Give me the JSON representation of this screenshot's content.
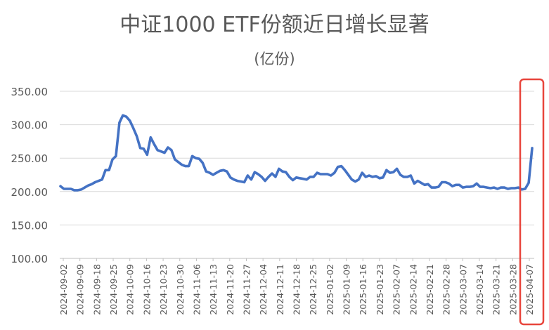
{
  "chart_data": {
    "type": "line",
    "title": "中证1000 ETF份额近日增长显著",
    "subtitle": "(亿份)",
    "xlabel": "",
    "ylabel": "",
    "ylim": [
      100,
      350
    ],
    "yticks": [
      "100.00",
      "150.00",
      "200.00",
      "250.00",
      "300.00",
      "350.00"
    ],
    "xtick_labels": [
      "2024-09-02",
      "2024-09-09",
      "2024-09-18",
      "2024-09-25",
      "2024-10-09",
      "2024-10-16",
      "2024-10-23",
      "2024-10-30",
      "2024-11-06",
      "2024-11-13",
      "2024-11-20",
      "2024-11-27",
      "2024-12-04",
      "2024-12-11",
      "2024-12-18",
      "2024-12-25",
      "2025-01-02",
      "2025-01-09",
      "2025-01-16",
      "2025-01-23",
      "2025-02-07",
      "2025-02-14",
      "2025-02-21",
      "2025-02-28",
      "2025-03-07",
      "2025-03-14",
      "2025-03-21",
      "2025-03-28",
      "2025-04-07"
    ],
    "grid": "horizontal",
    "line_color": "#4472C4",
    "highlight_box_color": "#E8453C",
    "series": [
      {
        "values": [
          208,
          204,
          204,
          204,
          202,
          202,
          203,
          206,
          209,
          211,
          214,
          216,
          218,
          232,
          232,
          248,
          253,
          303,
          314,
          312,
          306,
          295,
          283,
          265,
          264,
          255,
          281,
          271,
          262,
          260,
          258,
          266,
          262,
          248,
          244,
          240,
          238,
          238,
          253,
          250,
          249,
          243,
          230,
          228,
          225,
          228,
          231,
          232,
          230,
          221,
          218,
          216,
          215,
          214,
          224,
          218,
          229,
          226,
          222,
          216,
          222,
          227,
          222,
          234,
          230,
          229,
          222,
          217,
          221,
          220,
          219,
          218,
          222,
          222,
          228,
          226,
          226,
          226,
          224,
          228,
          237,
          238,
          232,
          225,
          218,
          215,
          218,
          228,
          222,
          224,
          222,
          223,
          220,
          221,
          232,
          228,
          229,
          234,
          225,
          222,
          222,
          224,
          212,
          216,
          213,
          210,
          211,
          206,
          206,
          207,
          214,
          214,
          212,
          208,
          210,
          210,
          206,
          207,
          207,
          208,
          212,
          207,
          207,
          206,
          205,
          206,
          204,
          206,
          206,
          204,
          205,
          205,
          206,
          203,
          204,
          213,
          265
        ]
      }
    ]
  }
}
